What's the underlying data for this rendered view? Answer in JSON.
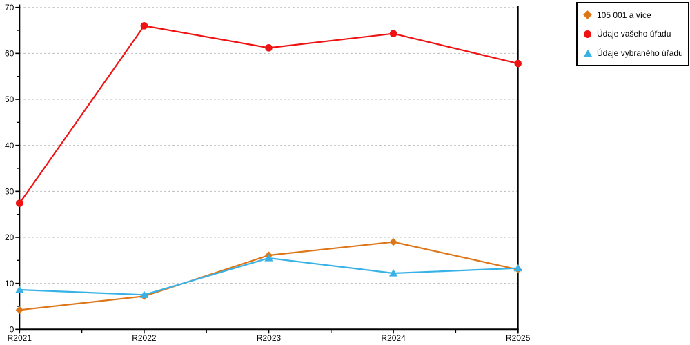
{
  "figure": {
    "background": "#ffffff",
    "axis_color": "#000000",
    "grid_color": "#b3b3b3",
    "text_color": "#000000"
  },
  "chart_data": {
    "type": "line",
    "title": "",
    "xlabel": "",
    "ylabel": "",
    "categories": [
      "R2021",
      "R2022",
      "R2023",
      "R2024",
      "R2025"
    ],
    "series": [
      {
        "name": "105 001 a více",
        "marker": "diamond",
        "color": "#dd7618",
        "values": [
          4.2,
          7.2,
          16.1,
          19,
          13
        ]
      },
      {
        "name": "Údaje vašeho úřadu",
        "marker": "circle",
        "color": "#ee1212",
        "values": [
          27.4,
          66,
          61.2,
          64.3,
          57.8
        ]
      },
      {
        "name": "Údaje vybraného úřadu",
        "marker": "triangle",
        "color": "#38b2e6",
        "values": [
          8.6,
          7.5,
          15.5,
          12.2,
          13.3
        ]
      }
    ],
    "ylim": [
      0,
      70
    ],
    "y_ticks": [
      0,
      10,
      20,
      30,
      40,
      50,
      60,
      70
    ],
    "y_minor_step": 5,
    "x_minor_ticks": true,
    "grid": "horizontal-dashed",
    "legend_position": "top-right"
  }
}
